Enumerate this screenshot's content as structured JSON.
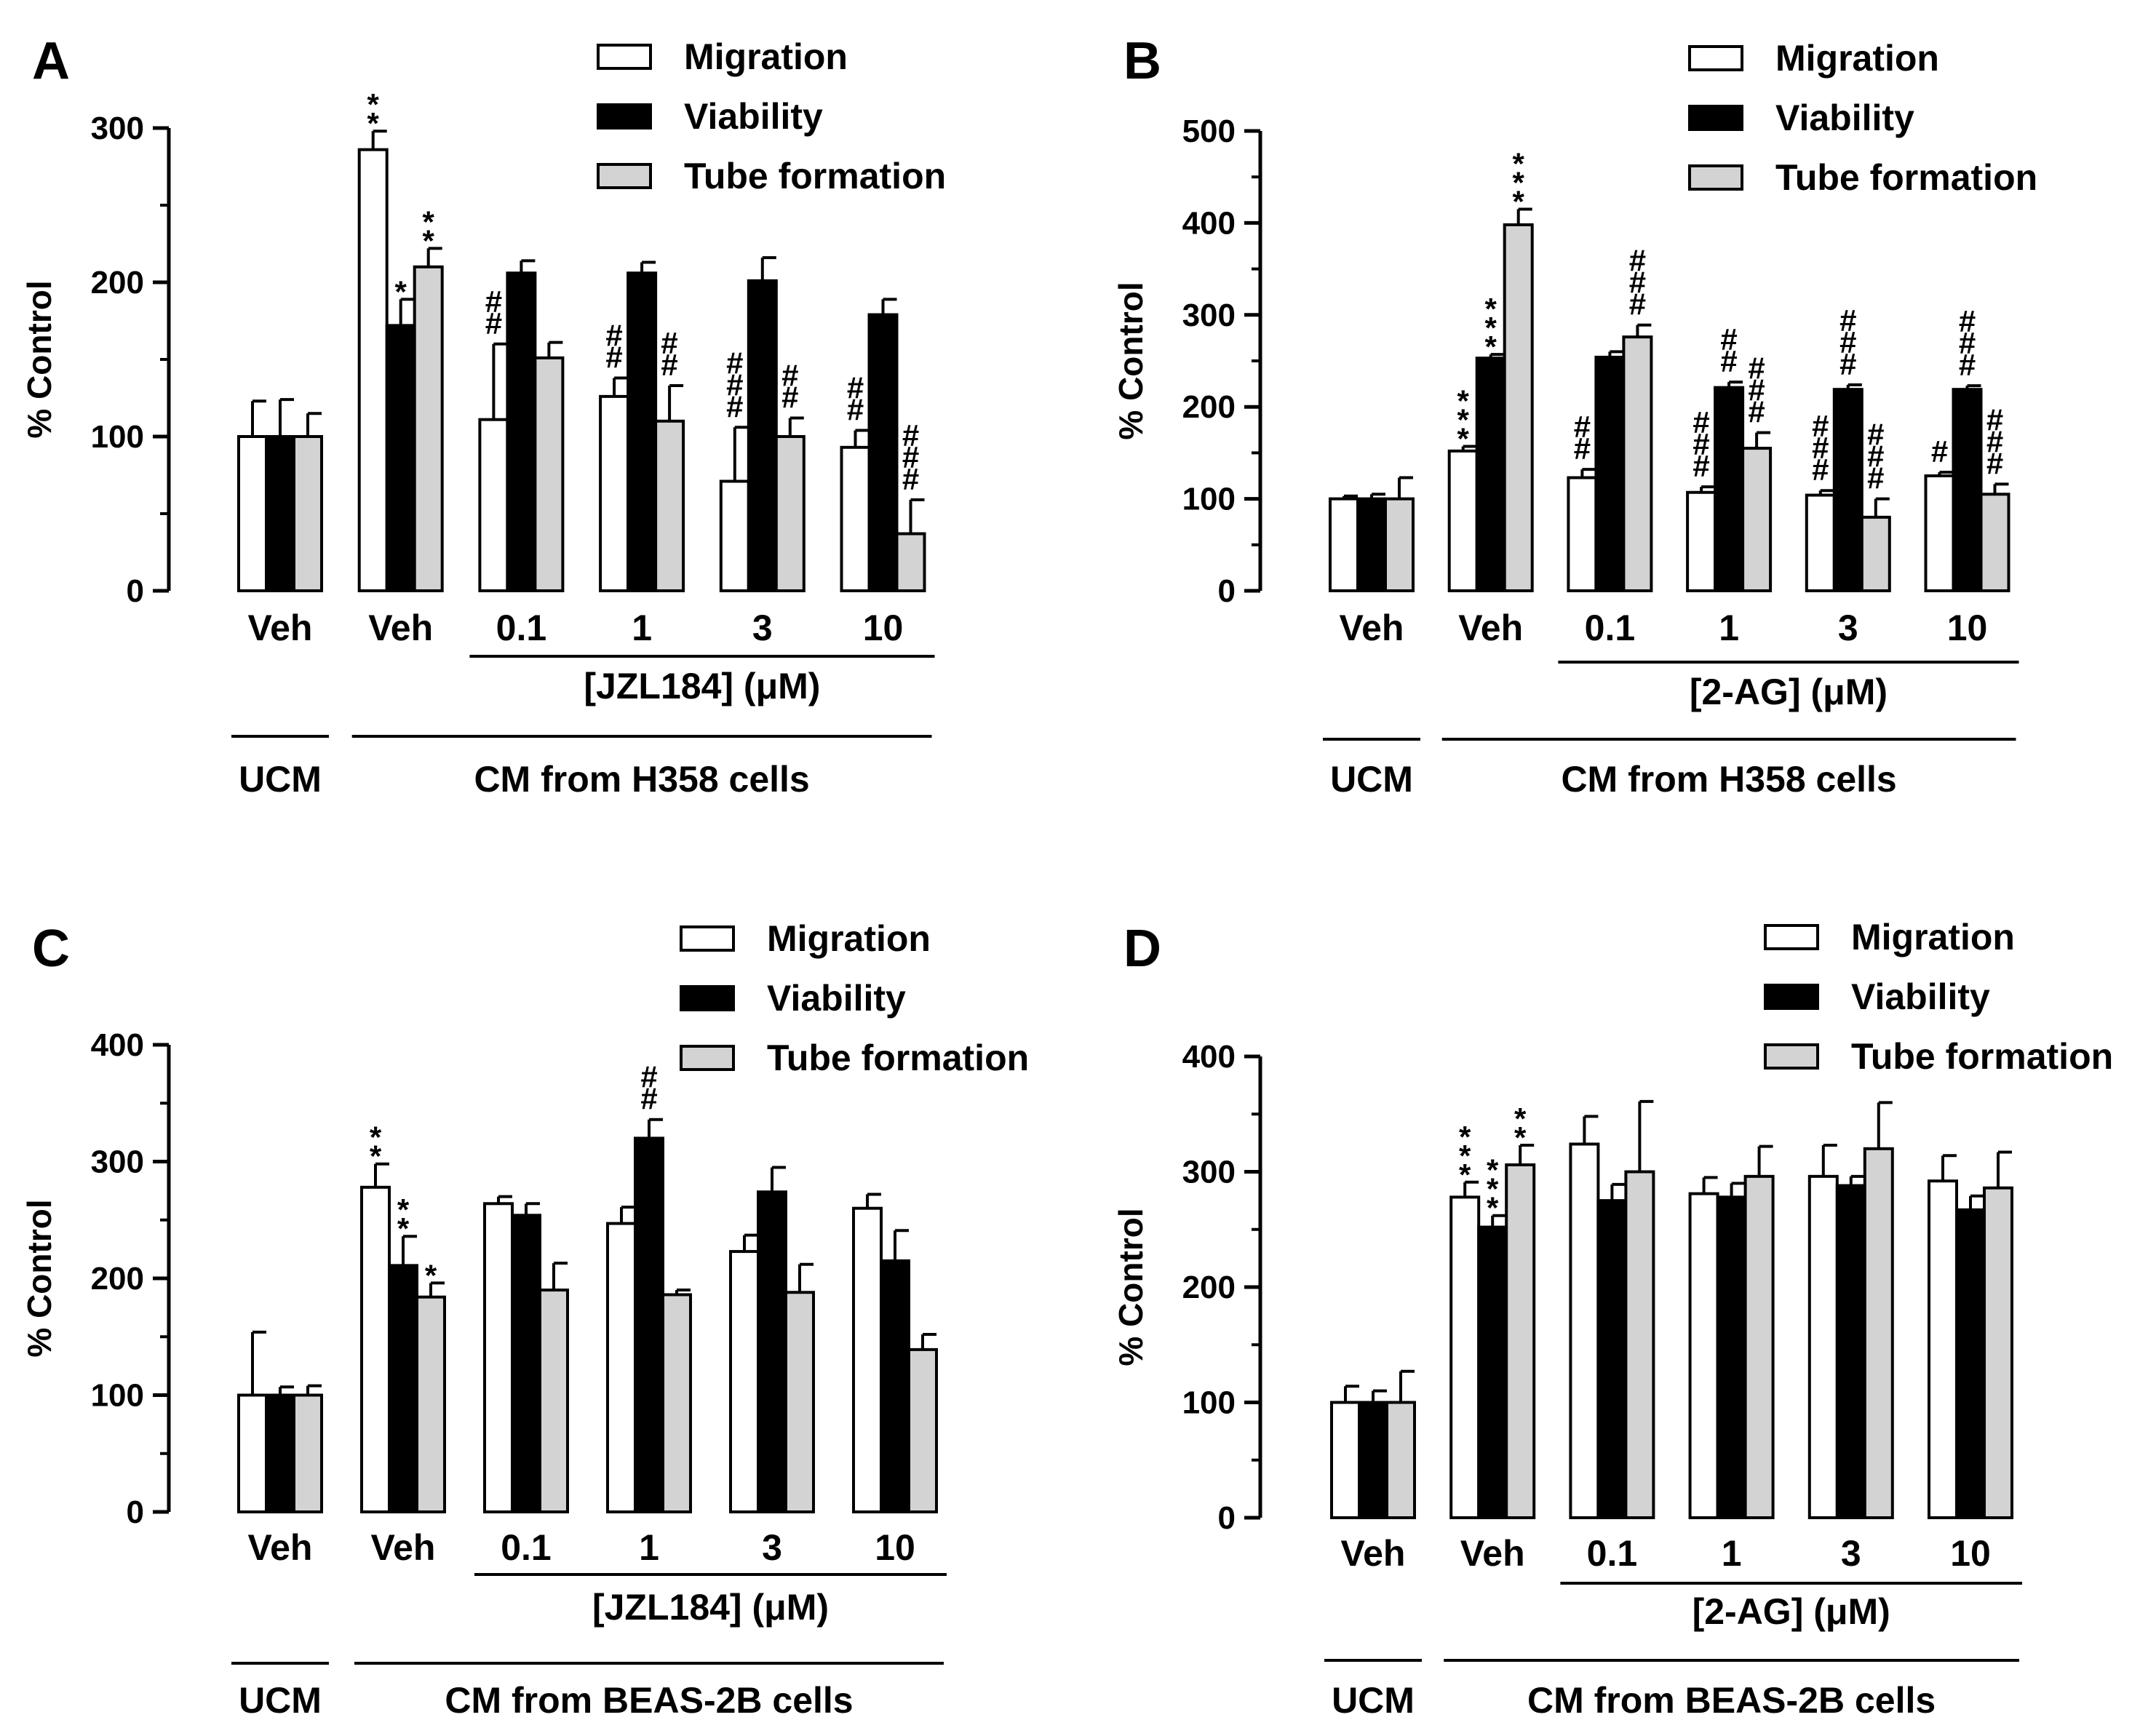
{
  "legend": [
    "Migration",
    "Viability",
    "Tube formation"
  ],
  "colors": {
    "Migration": "#ffffff",
    "Viability": "#000000",
    "Tube formation": "#d3d3d3"
  },
  "chart_data": [
    {
      "panel": "A",
      "type": "bar",
      "ylabel": "% Control",
      "ylim": [
        0,
        300
      ],
      "yticks": [
        0,
        100,
        200,
        300
      ],
      "categories": [
        "Veh",
        "Veh",
        "0.1",
        "1",
        "3",
        "10"
      ],
      "series": [
        {
          "name": "Migration",
          "values": [
            100,
            286,
            111,
            126,
            71,
            93
          ],
          "errors": [
            23,
            12,
            49,
            12,
            35,
            11
          ]
        },
        {
          "name": "Viability",
          "values": [
            100,
            172,
            206,
            206,
            201,
            179
          ],
          "errors": [
            24,
            17,
            8,
            7,
            15,
            10
          ]
        },
        {
          "name": "Tube formation",
          "values": [
            100,
            210,
            151,
            110,
            100,
            37
          ],
          "errors": [
            15,
            12,
            10,
            23,
            12,
            22
          ]
        }
      ],
      "significance": [
        [
          "",
          "",
          ""
        ],
        [
          "**",
          "*",
          "**"
        ],
        [
          "##",
          "",
          ""
        ],
        [
          "##",
          "",
          "##"
        ],
        [
          "###",
          "",
          "##"
        ],
        [
          "##",
          "",
          "###"
        ]
      ],
      "treatment_label": "[JZL184] (μM)",
      "control_label": "UCM",
      "group_label": "CM from H358 cells"
    },
    {
      "panel": "B",
      "type": "bar",
      "ylabel": "% Control",
      "ylim": [
        0,
        500
      ],
      "yticks": [
        0,
        100,
        200,
        300,
        400,
        500
      ],
      "categories": [
        "Veh",
        "Veh",
        "0.1",
        "1",
        "3",
        "10"
      ],
      "series": [
        {
          "name": "Migration",
          "values": [
            100,
            152,
            123,
            107,
            104,
            125
          ],
          "errors": [
            3,
            5,
            9,
            6,
            5,
            4
          ]
        },
        {
          "name": "Viability",
          "values": [
            100,
            253,
            254,
            221,
            219,
            219
          ],
          "errors": [
            5,
            4,
            6,
            6,
            5,
            4
          ]
        },
        {
          "name": "Tube formation",
          "values": [
            100,
            398,
            276,
            155,
            80,
            105
          ],
          "errors": [
            23,
            17,
            13,
            17,
            20,
            11
          ]
        }
      ],
      "significance": [
        [
          "",
          "",
          ""
        ],
        [
          "***",
          "***",
          "***"
        ],
        [
          "##",
          "",
          "###"
        ],
        [
          "###",
          "##",
          "###"
        ],
        [
          "###",
          "###",
          "###"
        ],
        [
          "#",
          "###",
          "###"
        ]
      ],
      "treatment_label": "[2-AG] (μM)",
      "control_label": "UCM",
      "group_label": "CM from H358 cells"
    },
    {
      "panel": "C",
      "type": "bar",
      "ylabel": "% Control",
      "ylim": [
        0,
        400
      ],
      "yticks": [
        0,
        100,
        200,
        300,
        400
      ],
      "categories": [
        "Veh",
        "Veh",
        "0.1",
        "1",
        "3",
        "10"
      ],
      "series": [
        {
          "name": "Migration",
          "values": [
            100,
            278,
            264,
            247,
            223,
            260
          ],
          "errors": [
            54,
            20,
            6,
            14,
            14,
            12
          ]
        },
        {
          "name": "Viability",
          "values": [
            100,
            211,
            254,
            320,
            274,
            215
          ],
          "errors": [
            7,
            25,
            10,
            16,
            21,
            26
          ]
        },
        {
          "name": "Tube formation",
          "values": [
            100,
            184,
            190,
            186,
            188,
            139
          ],
          "errors": [
            8,
            12,
            23,
            4,
            24,
            13
          ]
        }
      ],
      "significance": [
        [
          "",
          "",
          ""
        ],
        [
          "**",
          "**",
          "*"
        ],
        [
          "",
          "",
          ""
        ],
        [
          "",
          "##",
          ""
        ],
        [
          "",
          "",
          ""
        ],
        [
          "",
          "",
          ""
        ]
      ],
      "treatment_label": "[JZL184] (μM)",
      "control_label": "UCM",
      "group_label": "CM from BEAS-2B cells"
    },
    {
      "panel": "D",
      "type": "bar",
      "ylabel": "% Control",
      "ylim": [
        0,
        400
      ],
      "yticks": [
        0,
        100,
        200,
        300,
        400
      ],
      "categories": [
        "Veh",
        "Veh",
        "0.1",
        "1",
        "3",
        "10"
      ],
      "series": [
        {
          "name": "Migration",
          "values": [
            100,
            278,
            324,
            281,
            296,
            292
          ],
          "errors": [
            14,
            13,
            24,
            14,
            27,
            22
          ]
        },
        {
          "name": "Viability",
          "values": [
            100,
            252,
            275,
            278,
            288,
            267
          ],
          "errors": [
            10,
            10,
            14,
            12,
            8,
            12
          ]
        },
        {
          "name": "Tube formation",
          "values": [
            100,
            306,
            300,
            296,
            320,
            286
          ],
          "errors": [
            27,
            17,
            61,
            26,
            40,
            31
          ]
        }
      ],
      "significance": [
        [
          "",
          "",
          ""
        ],
        [
          "***",
          "***",
          "**"
        ],
        [
          "",
          "",
          ""
        ],
        [
          "",
          "",
          ""
        ],
        [
          "",
          "",
          ""
        ],
        [
          "",
          "",
          ""
        ]
      ],
      "treatment_label": "[2-AG] (μM)",
      "control_label": "UCM",
      "group_label": "CM from BEAS-2B cells"
    }
  ]
}
